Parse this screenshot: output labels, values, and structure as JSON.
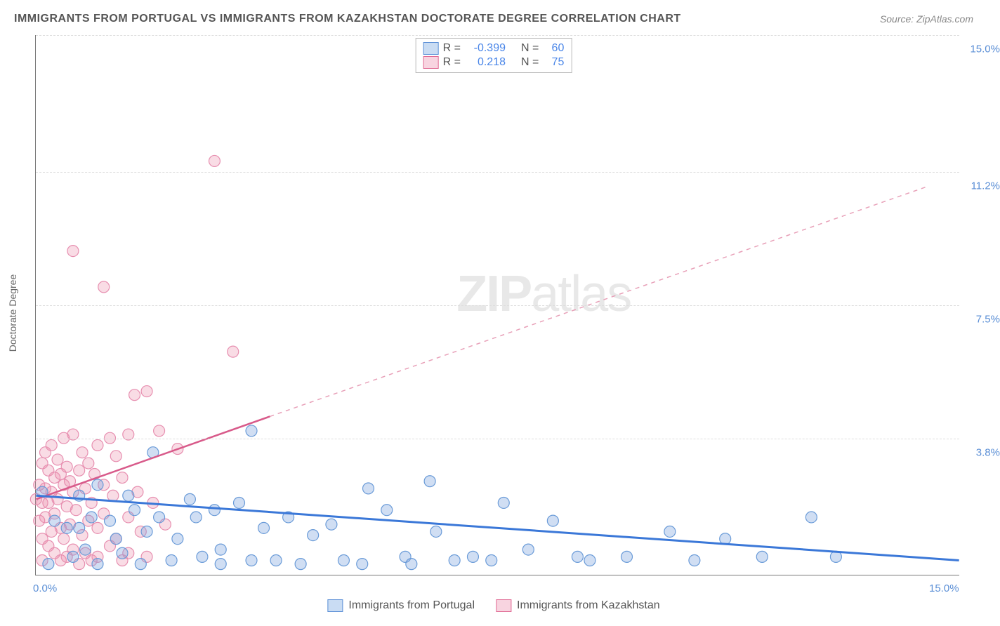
{
  "title": "IMMIGRANTS FROM PORTUGAL VS IMMIGRANTS FROM KAZAKHSTAN DOCTORATE DEGREE CORRELATION CHART",
  "source_prefix": "Source: ",
  "source": "ZipAtlas.com",
  "y_axis_title": "Doctorate Degree",
  "watermark_a": "ZIP",
  "watermark_b": "atlas",
  "chart": {
    "type": "scatter",
    "xlim": [
      0,
      15
    ],
    "ylim": [
      0,
      15
    ],
    "x_ticks": [
      {
        "v": 0,
        "label": "0.0%"
      },
      {
        "v": 15,
        "label": "15.0%"
      }
    ],
    "y_ticks": [
      {
        "v": 3.8,
        "label": "3.8%"
      },
      {
        "v": 7.5,
        "label": "7.5%"
      },
      {
        "v": 11.2,
        "label": "11.2%"
      },
      {
        "v": 15.0,
        "label": "15.0%"
      }
    ],
    "grid_color": "#dddddd",
    "background": "#ffffff",
    "axis_color": "#777777",
    "tick_label_color": "#5b8fd6",
    "series": [
      {
        "id": "portugal",
        "label": "Immigrants from Portugal",
        "color_fill": "rgba(120,160,220,0.35)",
        "color_stroke": "#6a9bd8",
        "swatch_fill": "#c9dcf3",
        "swatch_border": "#5b8fd6",
        "marker_r": 8,
        "r_value": "-0.399",
        "n_value": "60",
        "trend": {
          "x1": 0,
          "y1": 2.2,
          "x2": 15,
          "y2": 0.4,
          "stroke": "#3b78d8",
          "width": 3,
          "dash": "none"
        },
        "points": [
          [
            0.1,
            2.3
          ],
          [
            0.7,
            2.2
          ],
          [
            0.2,
            0.3
          ],
          [
            0.3,
            1.5
          ],
          [
            0.5,
            1.3
          ],
          [
            0.6,
            0.5
          ],
          [
            0.7,
            1.3
          ],
          [
            0.8,
            0.7
          ],
          [
            0.9,
            1.6
          ],
          [
            1.0,
            2.5
          ],
          [
            1.0,
            0.3
          ],
          [
            1.2,
            1.5
          ],
          [
            1.3,
            1.0
          ],
          [
            1.4,
            0.6
          ],
          [
            1.5,
            2.2
          ],
          [
            1.6,
            1.8
          ],
          [
            1.9,
            3.4
          ],
          [
            1.7,
            0.3
          ],
          [
            1.8,
            1.2
          ],
          [
            2.0,
            1.6
          ],
          [
            2.2,
            0.4
          ],
          [
            2.3,
            1.0
          ],
          [
            2.5,
            2.1
          ],
          [
            2.6,
            1.6
          ],
          [
            2.7,
            0.5
          ],
          [
            2.9,
            1.8
          ],
          [
            3.0,
            0.3
          ],
          [
            3.0,
            0.7
          ],
          [
            3.3,
            2.0
          ],
          [
            3.5,
            0.4
          ],
          [
            3.5,
            4.0
          ],
          [
            3.7,
            1.3
          ],
          [
            3.9,
            0.4
          ],
          [
            4.1,
            1.6
          ],
          [
            4.3,
            0.3
          ],
          [
            4.5,
            1.1
          ],
          [
            4.8,
            1.4
          ],
          [
            5.0,
            0.4
          ],
          [
            5.4,
            2.4
          ],
          [
            5.3,
            0.3
          ],
          [
            5.7,
            1.8
          ],
          [
            6.0,
            0.5
          ],
          [
            6.4,
            2.6
          ],
          [
            6.1,
            0.3
          ],
          [
            6.5,
            1.2
          ],
          [
            6.8,
            0.4
          ],
          [
            7.1,
            0.5
          ],
          [
            7.4,
            0.4
          ],
          [
            7.6,
            2.0
          ],
          [
            8.0,
            0.7
          ],
          [
            8.4,
            1.5
          ],
          [
            8.8,
            0.5
          ],
          [
            9.0,
            0.4
          ],
          [
            9.6,
            0.5
          ],
          [
            10.3,
            1.2
          ],
          [
            10.7,
            0.4
          ],
          [
            11.2,
            1.0
          ],
          [
            11.8,
            0.5
          ],
          [
            12.6,
            1.6
          ],
          [
            13.0,
            0.5
          ]
        ]
      },
      {
        "id": "kazakhstan",
        "label": "Immigrants from Kazakhstan",
        "color_fill": "rgba(235,140,170,0.30)",
        "color_stroke": "#e78fb0",
        "swatch_fill": "#f8d4e0",
        "swatch_border": "#e06a94",
        "marker_r": 8,
        "r_value": "0.218",
        "n_value": "75",
        "trend_solid": {
          "x1": 0,
          "y1": 2.1,
          "x2": 3.8,
          "y2": 4.4,
          "stroke": "#d85a8a",
          "width": 2.5
        },
        "trend_dash": {
          "x1": 3.8,
          "y1": 4.4,
          "x2": 14.5,
          "y2": 10.8,
          "stroke": "#e8a0b8",
          "width": 1.5,
          "dash": "6 6"
        },
        "points": [
          [
            0.0,
            2.1
          ],
          [
            0.05,
            2.5
          ],
          [
            0.05,
            1.5
          ],
          [
            0.1,
            2.0
          ],
          [
            0.1,
            3.1
          ],
          [
            0.1,
            1.0
          ],
          [
            0.1,
            0.4
          ],
          [
            0.15,
            3.4
          ],
          [
            0.15,
            2.4
          ],
          [
            0.15,
            1.6
          ],
          [
            0.2,
            2.9
          ],
          [
            0.2,
            2.0
          ],
          [
            0.2,
            0.8
          ],
          [
            0.25,
            3.6
          ],
          [
            0.25,
            1.2
          ],
          [
            0.25,
            2.3
          ],
          [
            0.3,
            2.7
          ],
          [
            0.3,
            1.7
          ],
          [
            0.3,
            0.6
          ],
          [
            0.35,
            3.2
          ],
          [
            0.35,
            2.1
          ],
          [
            0.4,
            1.3
          ],
          [
            0.4,
            2.8
          ],
          [
            0.4,
            0.4
          ],
          [
            0.45,
            3.8
          ],
          [
            0.45,
            2.5
          ],
          [
            0.45,
            1.0
          ],
          [
            0.5,
            1.9
          ],
          [
            0.5,
            3.0
          ],
          [
            0.5,
            0.5
          ],
          [
            0.55,
            2.6
          ],
          [
            0.55,
            1.4
          ],
          [
            0.6,
            2.3
          ],
          [
            0.6,
            3.9
          ],
          [
            0.6,
            0.7
          ],
          [
            0.6,
            9.0
          ],
          [
            0.65,
            1.8
          ],
          [
            0.7,
            2.9
          ],
          [
            0.7,
            0.3
          ],
          [
            0.75,
            3.4
          ],
          [
            0.75,
            1.1
          ],
          [
            0.8,
            2.4
          ],
          [
            0.8,
            0.6
          ],
          [
            0.85,
            3.1
          ],
          [
            0.85,
            1.5
          ],
          [
            0.9,
            2.0
          ],
          [
            0.9,
            0.4
          ],
          [
            0.95,
            2.8
          ],
          [
            1.0,
            3.6
          ],
          [
            1.0,
            1.3
          ],
          [
            1.0,
            0.5
          ],
          [
            1.1,
            2.5
          ],
          [
            1.1,
            1.7
          ],
          [
            1.1,
            8.0
          ],
          [
            1.2,
            3.8
          ],
          [
            1.2,
            0.8
          ],
          [
            1.25,
            2.2
          ],
          [
            1.3,
            3.3
          ],
          [
            1.3,
            1.0
          ],
          [
            1.4,
            2.7
          ],
          [
            1.4,
            0.4
          ],
          [
            1.5,
            3.9
          ],
          [
            1.5,
            1.6
          ],
          [
            1.5,
            0.6
          ],
          [
            1.6,
            5.0
          ],
          [
            1.65,
            2.3
          ],
          [
            1.7,
            1.2
          ],
          [
            1.8,
            5.1
          ],
          [
            1.8,
            0.5
          ],
          [
            1.9,
            2.0
          ],
          [
            2.0,
            4.0
          ],
          [
            2.1,
            1.4
          ],
          [
            2.3,
            3.5
          ],
          [
            2.9,
            11.5
          ],
          [
            3.2,
            6.2
          ]
        ]
      }
    ],
    "stats_labels": {
      "R": "R =",
      "N": "N ="
    }
  },
  "legend": {
    "portugal": "Immigrants from Portugal",
    "kazakhstan": "Immigrants from Kazakhstan"
  }
}
